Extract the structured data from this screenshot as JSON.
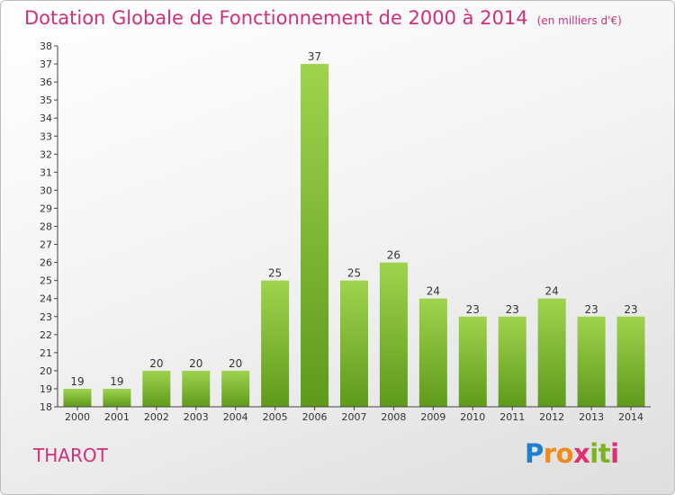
{
  "chart_data": {
    "type": "bar",
    "title": "Dotation Globale de Fonctionnement de 2000 à 2014",
    "unit_note": "(en milliers d'€)",
    "categories": [
      "2000",
      "2001",
      "2002",
      "2003",
      "2004",
      "2005",
      "2006",
      "2007",
      "2008",
      "2009",
      "2010",
      "2011",
      "2012",
      "2013",
      "2014"
    ],
    "values": [
      19,
      19,
      20,
      20,
      20,
      25,
      37,
      25,
      26,
      24,
      23,
      23,
      24,
      23,
      23
    ],
    "ylim": [
      18,
      38
    ],
    "yticks": [
      18,
      19,
      20,
      21,
      22,
      23,
      24,
      25,
      26,
      27,
      28,
      29,
      30,
      31,
      32,
      33,
      34,
      35,
      36,
      37,
      38
    ],
    "xlabel": "",
    "ylabel": "",
    "grid": false,
    "bar_color": "#7cb82f",
    "bar_color_light": "#9fd34e",
    "bar_color_dark": "#5f9a1b"
  },
  "commune": "THAROT",
  "brand": {
    "letters": [
      "P",
      "r",
      "o",
      "x",
      "i",
      "t",
      "i"
    ],
    "colors": [
      "#1e7fd0",
      "#f08a1c",
      "#f08a1c",
      "#e0306e",
      "#7ab51d",
      "#7ab51d",
      "#e0306e"
    ]
  },
  "colors": {
    "title": "#d12f7a"
  }
}
